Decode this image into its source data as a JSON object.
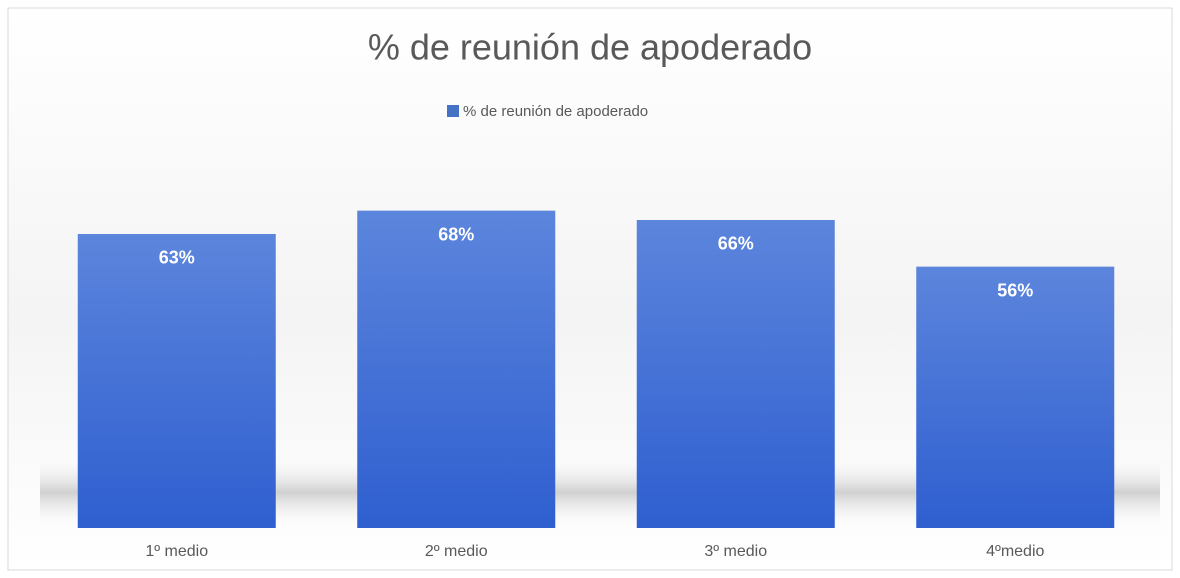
{
  "chart_data": {
    "type": "bar",
    "title": "% de reunión de apoderado",
    "categories": [
      "1º medio",
      "2º medio",
      "3º medio",
      "4ºmedio"
    ],
    "series": [
      {
        "name": "% de reunión de apoderado",
        "color": "#4472c4",
        "values": [
          63,
          68,
          66,
          56
        ],
        "value_labels": [
          "63%",
          "68%",
          "66%",
          "56%"
        ]
      }
    ]
  }
}
